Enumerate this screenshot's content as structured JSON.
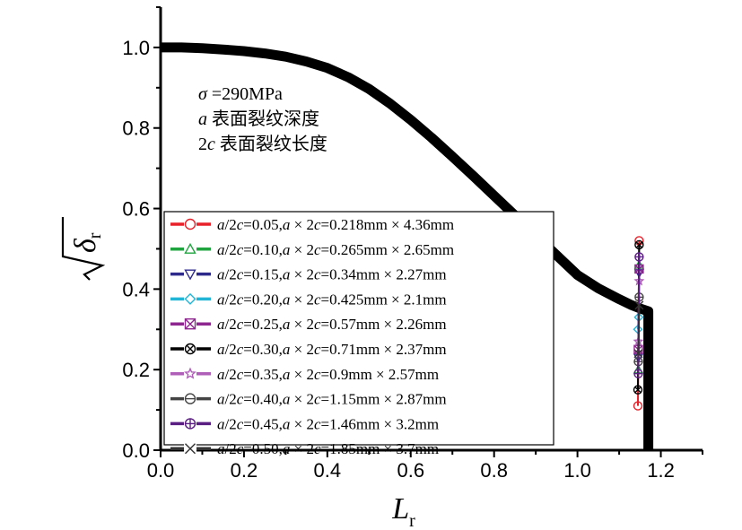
{
  "chart_data": {
    "type": "scatter",
    "title": "",
    "xlabel": "L",
    "xlabel_sub": "r",
    "ylabel": "δ",
    "ylabel_sub": "r",
    "xlim": [
      0.0,
      1.3
    ],
    "ylim": [
      0.0,
      1.1
    ],
    "x_ticks": [
      "0.0",
      "0.2",
      "0.4",
      "0.6",
      "0.8",
      "1.0",
      "1.2"
    ],
    "x_tick_values": [
      0.0,
      0.2,
      0.4,
      0.6,
      0.8,
      1.0,
      1.2
    ],
    "y_ticks": [
      "0.0",
      "0.2",
      "0.4",
      "0.6",
      "0.8",
      "1.0"
    ],
    "y_tick_values": [
      0.0,
      0.2,
      0.4,
      0.6,
      0.8,
      1.0
    ],
    "grid": false,
    "legend_position": "bottom-left",
    "annotations": [
      {
        "parts": [
          {
            "t": "σ",
            "italic": true
          },
          {
            "t": " =290MPa",
            "italic": false
          }
        ]
      },
      {
        "parts": [
          {
            "t": "a",
            "italic": true
          },
          {
            "t": " 表面裂纹深度",
            "italic": false
          }
        ]
      },
      {
        "parts": [
          {
            "t": "2",
            "italic": false
          },
          {
            "t": "c",
            "italic": true
          },
          {
            "t": " 表面裂纹长度",
            "italic": false
          }
        ]
      }
    ],
    "fad_curve": {
      "color": "#000000",
      "cutoff_lr": 1.17,
      "points": [
        [
          0.0,
          1.0
        ],
        [
          0.05,
          1.0
        ],
        [
          0.1,
          0.998
        ],
        [
          0.15,
          0.995
        ],
        [
          0.2,
          0.991
        ],
        [
          0.25,
          0.985
        ],
        [
          0.3,
          0.977
        ],
        [
          0.35,
          0.965
        ],
        [
          0.4,
          0.949
        ],
        [
          0.45,
          0.926
        ],
        [
          0.5,
          0.897
        ],
        [
          0.55,
          0.861
        ],
        [
          0.6,
          0.82
        ],
        [
          0.65,
          0.776
        ],
        [
          0.7,
          0.729
        ],
        [
          0.75,
          0.681
        ],
        [
          0.8,
          0.632
        ],
        [
          0.85,
          0.583
        ],
        [
          0.9,
          0.533
        ],
        [
          0.95,
          0.484
        ],
        [
          1.0,
          0.435
        ],
        [
          1.05,
          0.402
        ],
        [
          1.1,
          0.375
        ],
        [
          1.13,
          0.36
        ],
        [
          1.15,
          0.352
        ],
        [
          1.17,
          0.345
        ]
      ]
    },
    "series": [
      {
        "name": "a/2c=0.05,a × 2c=0.218mm × 4.36mm",
        "color": "#e8202a",
        "marker": "circle",
        "points": [
          [
            1.145,
            0.11
          ],
          [
            1.148,
            0.52
          ]
        ]
      },
      {
        "name": "a/2c=0.10,a × 2c=0.265mm × 2.65mm",
        "color": "#1fa43f",
        "marker": "triangle-up",
        "points": [
          [
            1.146,
            0.2
          ],
          [
            1.148,
            0.46
          ]
        ]
      },
      {
        "name": "a/2c=0.15,a × 2c=0.34mm × 2.27mm",
        "color": "#2e2a8c",
        "marker": "triangle-down",
        "points": [
          [
            1.146,
            0.23
          ],
          [
            1.148,
            0.44
          ]
        ]
      },
      {
        "name": "a/2c=0.20,a × 2c=0.425mm × 2.1mm",
        "color": "#22b5d6",
        "marker": "diamond",
        "points": [
          [
            1.145,
            0.3
          ],
          [
            1.147,
            0.33
          ]
        ]
      },
      {
        "name": "a/2c=0.25,a × 2c=0.57mm × 2.26mm",
        "color": "#8e278f",
        "marker": "square-x",
        "points": [
          [
            1.146,
            0.25
          ],
          [
            1.148,
            0.45
          ]
        ]
      },
      {
        "name": "a/2c=0.30,a × 2c=0.71mm × 2.37mm",
        "color": "#000000",
        "marker": "circle-x",
        "points": [
          [
            1.145,
            0.15
          ],
          [
            1.148,
            0.51
          ]
        ]
      },
      {
        "name": "a/2c=0.35,a × 2c=0.9mm × 2.57mm",
        "color": "#b05fb8",
        "marker": "star",
        "points": [
          [
            1.146,
            0.27
          ],
          [
            1.148,
            0.42
          ]
        ]
      },
      {
        "name": "a/2c=0.40,a × 2c=1.15mm × 2.87mm",
        "color": "#444444",
        "marker": "circle-minus",
        "points": [
          [
            1.146,
            0.22
          ],
          [
            1.148,
            0.38
          ]
        ]
      },
      {
        "name": "a/2c=0.45,a × 2c=1.46mm × 3.2mm",
        "color": "#5a1d82",
        "marker": "circle-plus",
        "points": [
          [
            1.146,
            0.19
          ],
          [
            1.148,
            0.48
          ]
        ]
      },
      {
        "name": "a/2c=0.50,a × 2c=1.85mm × 3.7mm",
        "color": "#333333",
        "marker": "x",
        "points": [
          [
            1.146,
            0.24
          ],
          [
            1.148,
            0.36
          ]
        ]
      }
    ]
  }
}
